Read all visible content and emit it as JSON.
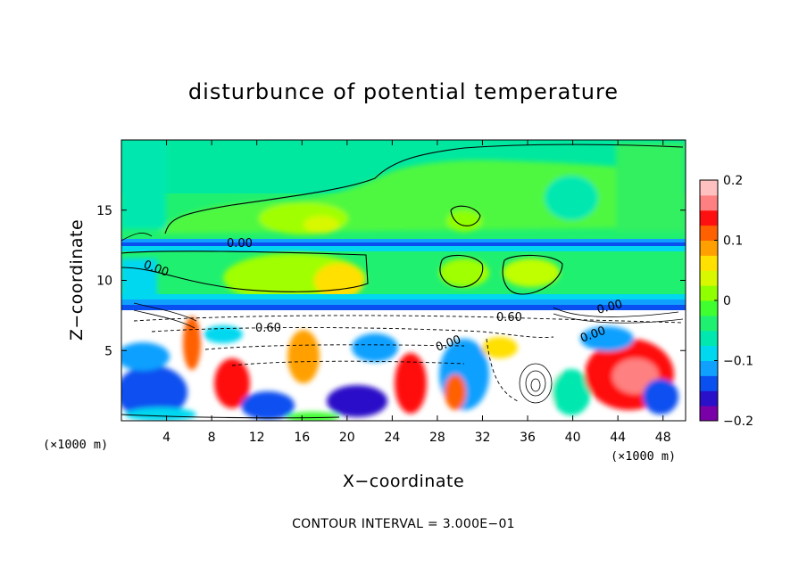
{
  "chart_data": {
    "type": "heatmap",
    "title": "disturbunce of potential temperature",
    "xlabel": "X−coordinate",
    "ylabel": "Z−coordinate",
    "x_unit_label": "(×1000 m)",
    "x_unit_label_right": "(×1000 m)",
    "xlim": [
      0,
      50
    ],
    "ylim": [
      0,
      20
    ],
    "xticks": [
      4,
      8,
      12,
      16,
      20,
      24,
      28,
      32,
      36,
      40,
      44,
      48
    ],
    "yticks": [
      5,
      10,
      15
    ],
    "colorbar": {
      "range": [
        -0.2,
        0.2
      ],
      "ticks": [
        "0.2",
        "0.1",
        "0",
        "−0.1",
        "−0.2"
      ],
      "colors": [
        "#7a00a8",
        "#2a10c8",
        "#0a50f0",
        "#10a0ff",
        "#00d8f0",
        "#00e8b0",
        "#20f070",
        "#40ff30",
        "#90ff00",
        "#d8f800",
        "#ffe000",
        "#ffa000",
        "#ff6000",
        "#ff1010",
        "#ff8080",
        "#ffc0c0"
      ]
    },
    "contour_labels": [
      "0.00",
      "0.00",
      "0.60",
      "0.00",
      "0.00",
      "0.00",
      "0.60"
    ],
    "contour_interval_note": "CONTOUR INTERVAL = 3.000E−01"
  }
}
